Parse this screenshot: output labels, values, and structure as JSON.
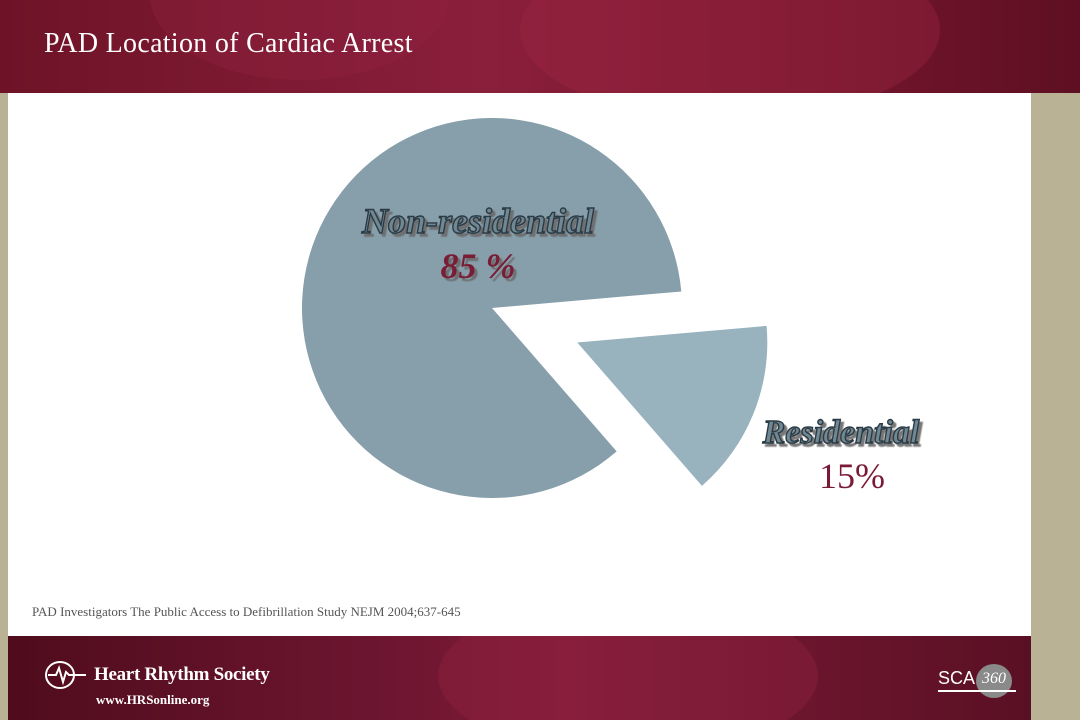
{
  "slide": {
    "title": "PAD Location of Cardiac Arrest"
  },
  "chart_data": {
    "type": "pie",
    "title": "",
    "slices": [
      {
        "label": "Non-residential",
        "value": 85,
        "value_label": "85 %",
        "color": "#879fab",
        "exploded": false
      },
      {
        "label": "Residential",
        "value": 15,
        "value_label": "15%",
        "color": "#98b2be",
        "exploded": true
      }
    ]
  },
  "source": {
    "text": "PAD Investigators The Public Access to Defibrillation Study NEJM 2004;637-645"
  },
  "footer": {
    "brand_name": "Heart Rhythm Society",
    "url": "www.HRSonline.org",
    "right_logo_text": "SCA",
    "right_logo_number": "360"
  }
}
